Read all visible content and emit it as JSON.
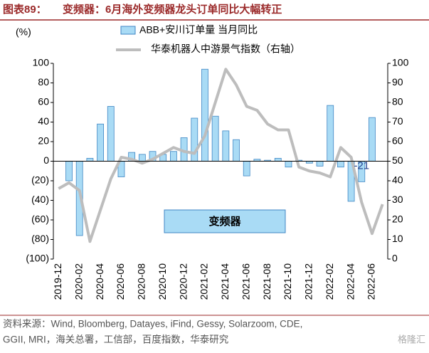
{
  "chart_data": {
    "type": "bar_line",
    "title_prefix": "图表89：",
    "title": "变频器：6月海外变频器龙头订单同比大幅转正",
    "y_label": "(%)",
    "annotation": "变频器",
    "source": [
      "资料来源：Wind, Bloomberg, Datayes, iFind, Gessy, Solarzoom, CDE,",
      "GGII, MRI，海关总署，工信部，百度指数，华泰研究"
    ],
    "watermark": "格隆汇",
    "categories": [
      "2019-12",
      null,
      "2020-02",
      null,
      "2020-04",
      null,
      "2020-06",
      null,
      "2020-08",
      null,
      "2020-10",
      null,
      "2020-12",
      null,
      "2021-02",
      null,
      "2021-04",
      null,
      "2021-06",
      null,
      "2021-08",
      null,
      "2021-10",
      null,
      "2021-12",
      null,
      "2022-02",
      null,
      "2022-04",
      null,
      "2022-06",
      null
    ],
    "series": [
      {
        "name": "ABB+安川订单量 当月同比",
        "type": "bar",
        "color": "#a9dbf5",
        "edge": "#3f86c4",
        "values": [
          null,
          -20,
          -76,
          3,
          38,
          56,
          -16,
          9,
          7,
          10,
          7,
          10,
          24,
          44,
          94,
          46,
          31,
          22,
          -15,
          2,
          1,
          3,
          -6,
          1,
          -2,
          -5,
          57,
          -6,
          -41,
          -21,
          44.6,
          null
        ]
      },
      {
        "name": "华泰机器人中游景气指数（右轴）",
        "type": "line",
        "axis": "y2",
        "color": "#bdbdbd",
        "values": [
          36,
          39,
          35,
          9,
          25,
          41,
          52,
          51,
          49,
          51,
          54,
          57,
          55,
          54,
          63,
          80,
          97,
          89,
          78,
          76,
          69,
          66,
          66,
          47,
          45,
          44,
          42,
          57,
          52,
          29,
          13,
          28
        ]
      }
    ],
    "labeled_point": 29,
    "ylim": [
      -100,
      100
    ],
    "yticks": [
      {
        "value": -100,
        "label": "(100)"
      },
      {
        "value": -80,
        "label": "(80)"
      },
      {
        "value": -60,
        "label": "(60)"
      },
      {
        "value": -40,
        "label": "(40)"
      },
      {
        "value": -20,
        "label": "(20)"
      },
      0,
      20,
      40,
      60,
      80,
      100
    ],
    "y2lim": [
      0,
      100
    ],
    "y2ticks": [
      0,
      10,
      20,
      30,
      40,
      50,
      60,
      70,
      80,
      90,
      100
    ]
  }
}
